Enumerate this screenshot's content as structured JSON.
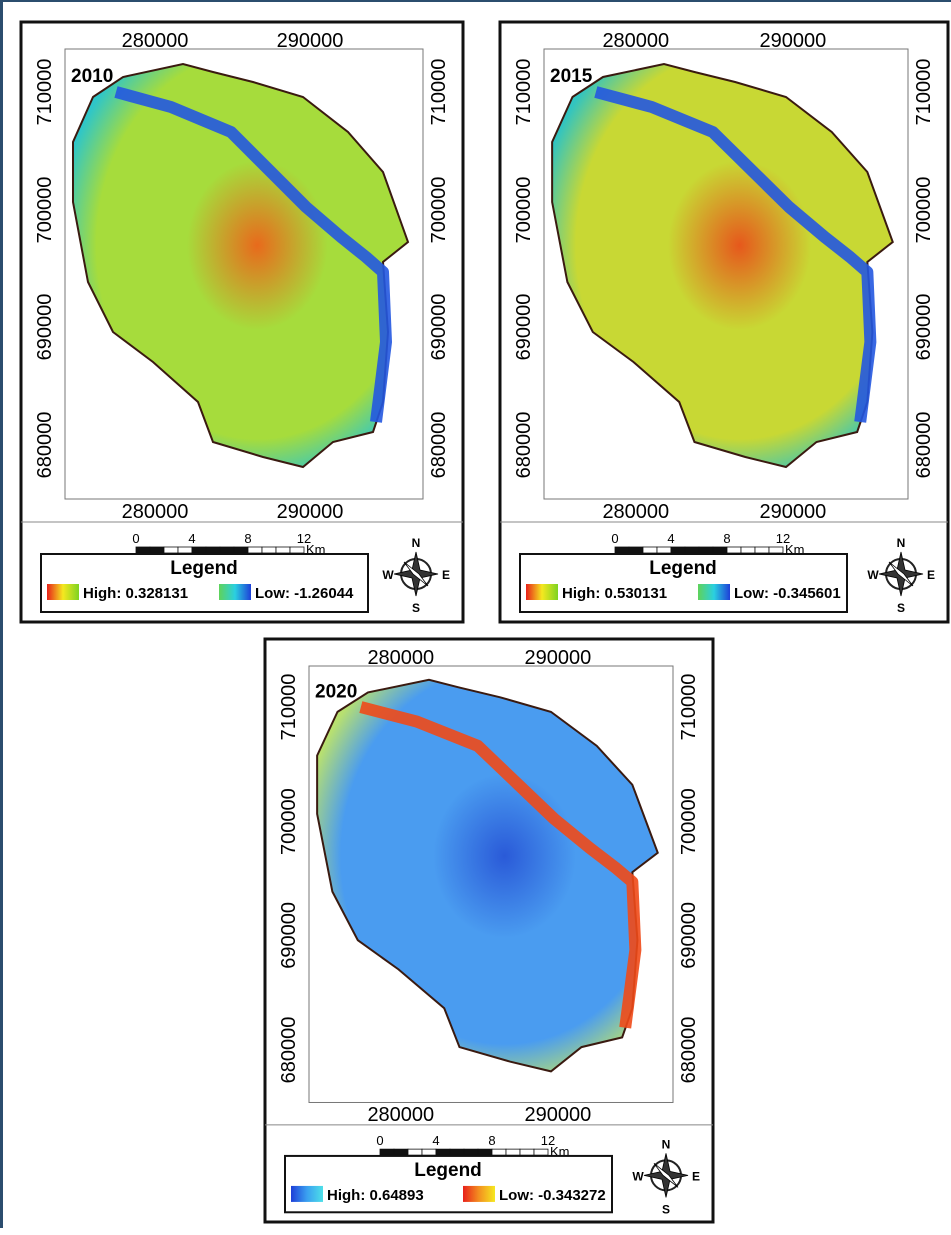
{
  "maps": [
    {
      "year": "2010",
      "x_ticks": [
        "280000",
        "290000"
      ],
      "y_ticks": [
        "710000",
        "700000",
        "690000",
        "680000"
      ],
      "scale": [
        "0",
        "4",
        "8",
        "12"
      ],
      "scale_unit": "Km",
      "legend_title": "Legend",
      "high": "High: 0.328131",
      "low": "Low: -1.26044",
      "high_colors": [
        "#e8201a",
        "#f5e820",
        "#7ed321"
      ],
      "low_colors": [
        "#5fd35a",
        "#2ad0e0",
        "#1e3fd8"
      ],
      "map_colors": {
        "base": "#a6dc3c",
        "patch": "#e86a1c",
        "edge": "#2fc6c8",
        "river": "#2458e0"
      },
      "compass": {
        "n": "N",
        "w": "W",
        "e": "E",
        "s": "S"
      }
    },
    {
      "year": "2015",
      "x_ticks": [
        "280000",
        "290000"
      ],
      "y_ticks": [
        "710000",
        "700000",
        "690000",
        "680000"
      ],
      "scale": [
        "0",
        "4",
        "8",
        "12"
      ],
      "scale_unit": "Km",
      "legend_title": "Legend",
      "high": "High: 0.530131",
      "low": "Low: -0.345601",
      "high_colors": [
        "#e8201a",
        "#f5e820",
        "#7ed321"
      ],
      "low_colors": [
        "#5fd35a",
        "#2ad0e0",
        "#1e3fd8"
      ],
      "map_colors": {
        "base": "#c8d834",
        "patch": "#e6581c",
        "edge": "#32c4c0",
        "river": "#2458e0"
      },
      "compass": {
        "n": "N",
        "w": "W",
        "e": "E",
        "s": "S"
      }
    },
    {
      "year": "2020",
      "x_ticks": [
        "280000",
        "290000"
      ],
      "y_ticks": [
        "710000",
        "700000",
        "690000",
        "680000"
      ],
      "scale": [
        "0",
        "4",
        "8",
        "12"
      ],
      "scale_unit": "Km",
      "legend_title": "Legend",
      "high": "High: 0.64893",
      "low": "Low: -0.343272",
      "high_colors": [
        "#1e3fd8",
        "#3aa0f0",
        "#4ee0e8"
      ],
      "low_colors": [
        "#e8201a",
        "#f39020",
        "#f5e820"
      ],
      "map_colors": {
        "base": "#4a9cf0",
        "patch": "#2a5ad8",
        "edge": "#b8e070",
        "river": "#f04a18"
      },
      "compass": {
        "n": "N",
        "w": "W",
        "e": "E",
        "s": "S"
      }
    }
  ]
}
